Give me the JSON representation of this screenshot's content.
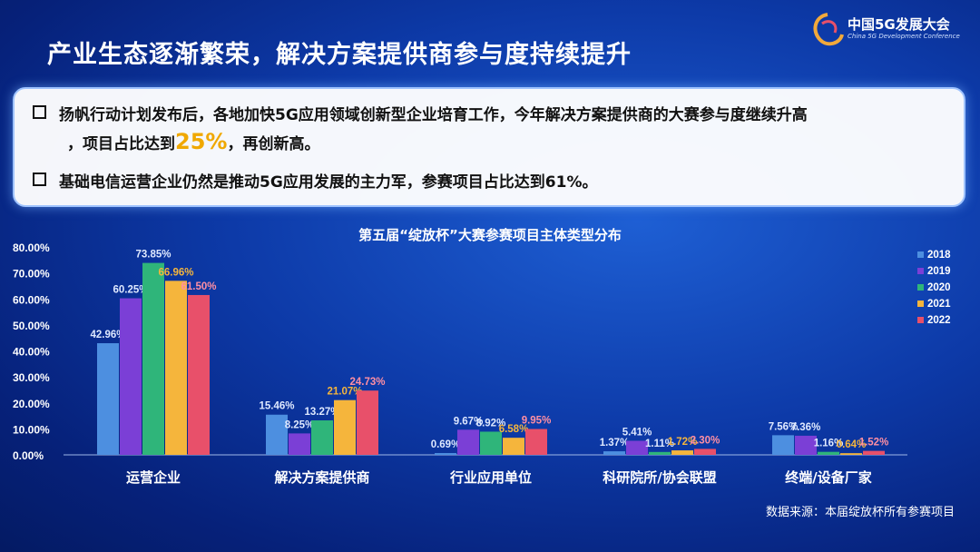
{
  "header": {
    "logo_text": "中国5G发展大会",
    "logo_sub": "China 5G Development Conference",
    "title": "产业生态逐渐繁荣，解决方案提供商参与度持续提升"
  },
  "bullets": {
    "b1_line1": "扬帆行动计划发布后，各地加快5G应用领域创新型企业培育工作，今年解决方案提供商的大赛参与度继续升高",
    "b1_line2_pre": "，项目占比达到",
    "b1_highlight": "25%",
    "b1_line2_post": "，再创新高。",
    "b2": "基础电信运营企业仍然是推动5G应用发展的主力军，参赛项目占比达到61%。"
  },
  "source": "数据来源：本届绽放杯所有参赛项目",
  "chart_data": {
    "type": "bar",
    "title": "第五届“绽放杯”大赛参赛项目主体类型分布",
    "categories": [
      "运营企业",
      "解决方案提供商",
      "行业应用单位",
      "科研院所/协会联盟",
      "终端/设备厂家"
    ],
    "series": [
      {
        "name": "2018",
        "color": "#4d8fe0",
        "values": [
          42.96,
          15.46,
          0.69,
          1.37,
          7.56
        ],
        "labels": [
          "42.96%",
          "15.46%",
          "0.69%",
          "1.37%",
          "7.56%"
        ]
      },
      {
        "name": "2019",
        "color": "#7b3fd6",
        "values": [
          60.25,
          8.25,
          9.67,
          5.41,
          7.36
        ],
        "labels": [
          "60.25%",
          "8.25%",
          "9.67%",
          "5.41%",
          "7.36%"
        ]
      },
      {
        "name": "2020",
        "color": "#2fb57a",
        "values": [
          73.85,
          13.27,
          8.92,
          1.11,
          1.16
        ],
        "labels": [
          "73.85%",
          "13.27%",
          "8.92%",
          "1.11%",
          "1.16%"
        ]
      },
      {
        "name": "2021",
        "color": "#f5b53c",
        "values": [
          66.96,
          21.07,
          6.58,
          1.72,
          0.64
        ],
        "labels": [
          "66.96%",
          "21.07%",
          "6.58%",
          "1.72%",
          "0.64%"
        ]
      },
      {
        "name": "2022",
        "color": "#e8506a",
        "values": [
          61.5,
          24.73,
          9.95,
          2.3,
          1.52
        ],
        "labels": [
          "61.50%",
          "24.73%",
          "9.95%",
          "2.30%",
          "1.52%"
        ]
      }
    ],
    "y_ticks": [
      "0.00%",
      "10.00%",
      "20.00%",
      "30.00%",
      "40.00%",
      "50.00%",
      "60.00%",
      "70.00%",
      "80.00%"
    ],
    "ylim": [
      0,
      80
    ],
    "legend_position": "right"
  }
}
